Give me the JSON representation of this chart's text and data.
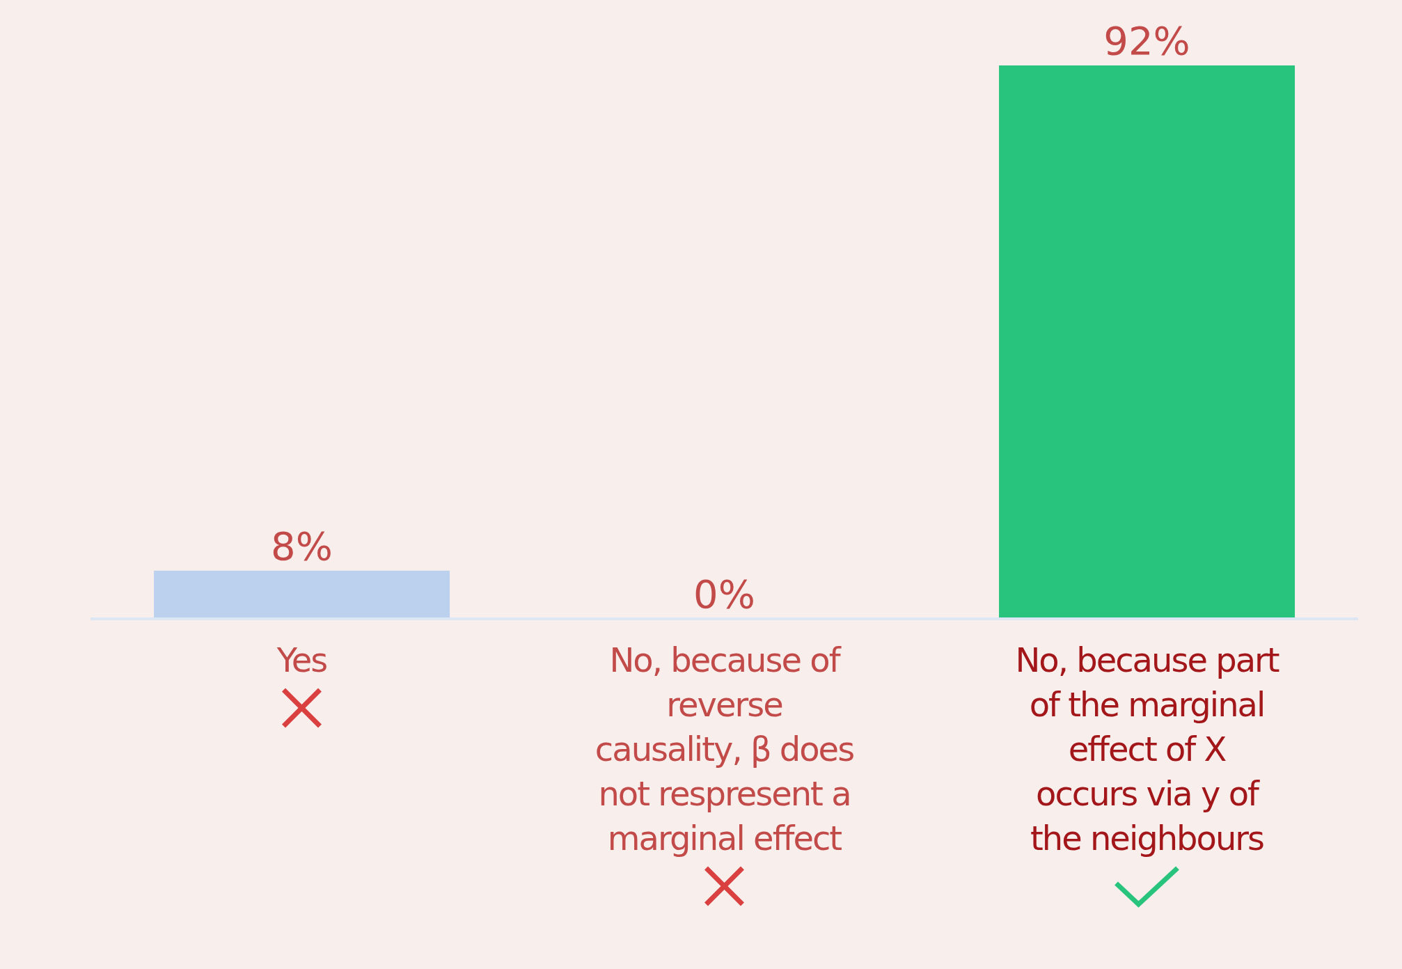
{
  "chart_data": {
    "type": "bar",
    "categories": [
      "Yes",
      "No, because of reverse causality, β does not respresent a marginal effect",
      "No, because part of the marginal effect of X occurs via y of the neighbours"
    ],
    "values": [
      8,
      0,
      92
    ],
    "colors": [
      "#bcd1ee",
      "#bcd1ee",
      "#28c47e"
    ],
    "value_labels": [
      "8%",
      "0%",
      "92%"
    ]
  }
}
